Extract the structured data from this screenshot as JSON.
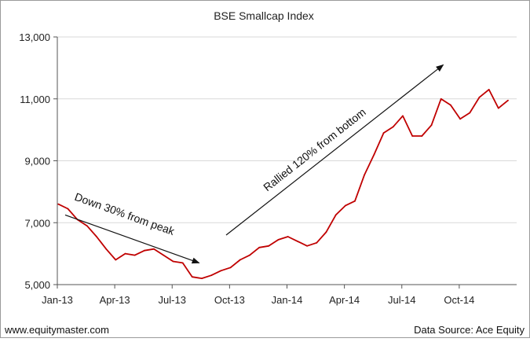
{
  "chart_data": {
    "type": "line",
    "title": "BSE Smallcap Index",
    "xlabel": "",
    "ylabel": "",
    "ylim": [
      5000,
      13000
    ],
    "yticks": [
      5000,
      7000,
      9000,
      11000,
      13000
    ],
    "ytick_labels": [
      "5,000",
      "7,000",
      "9,000",
      "11,000",
      "13,000"
    ],
    "xtick_labels": [
      "Jan-13",
      "Apr-13",
      "Jul-13",
      "Oct-13",
      "Jan-14",
      "Apr-14",
      "Jul-14",
      "Oct-14"
    ],
    "x_range": [
      "Jan-13",
      "Jan-15"
    ],
    "grid": "horizontal",
    "line_color": "#c00000",
    "series": [
      {
        "name": "",
        "x": [
          "Jan-13",
          "Jan-13",
          "Feb-13",
          "Feb-13",
          "Mar-13",
          "Mar-13",
          "Apr-13",
          "Apr-13",
          "May-13",
          "May-13",
          "Jun-13",
          "Jun-13",
          "Jul-13",
          "Jul-13",
          "Aug-13",
          "Aug-13",
          "Sep-13",
          "Sep-13",
          "Oct-13",
          "Oct-13",
          "Nov-13",
          "Nov-13",
          "Dec-13",
          "Dec-13",
          "Jan-14",
          "Jan-14",
          "Feb-14",
          "Feb-14",
          "Mar-14",
          "Mar-14",
          "Apr-14",
          "Apr-14",
          "May-14",
          "May-14",
          "Jun-14",
          "Jun-14",
          "Jul-14",
          "Jul-14",
          "Aug-14",
          "Aug-14",
          "Sep-14",
          "Sep-14",
          "Oct-14",
          "Oct-14",
          "Nov-14",
          "Nov-14",
          "Dec-14",
          "Dec-14"
        ],
        "values": [
          7600,
          7450,
          7100,
          6900,
          6550,
          6150,
          5800,
          6000,
          5950,
          6100,
          6150,
          5950,
          5750,
          5700,
          5250,
          5200,
          5300,
          5450,
          5550,
          5800,
          5950,
          6200,
          6250,
          6450,
          6550,
          6400,
          6250,
          6350,
          6700,
          7250,
          7550,
          7700,
          8550,
          9200,
          9900,
          10100,
          10450,
          9800,
          9800,
          10150,
          11000,
          10800,
          10350,
          10550,
          11050,
          11300,
          10700,
          10950
        ]
      }
    ],
    "annotations": [
      {
        "text": "Down 30% from peak",
        "from": [
          "Jan-13",
          7250
        ],
        "to": [
          "Aug-13",
          5700
        ]
      },
      {
        "text": "Rallied 120% from bottom",
        "from": [
          "Sep-13",
          6600
        ],
        "to": [
          "Sep-14",
          12100
        ]
      }
    ]
  },
  "footer": {
    "site": "www.equitymaster.com",
    "source": "Data Source: Ace Equity"
  }
}
